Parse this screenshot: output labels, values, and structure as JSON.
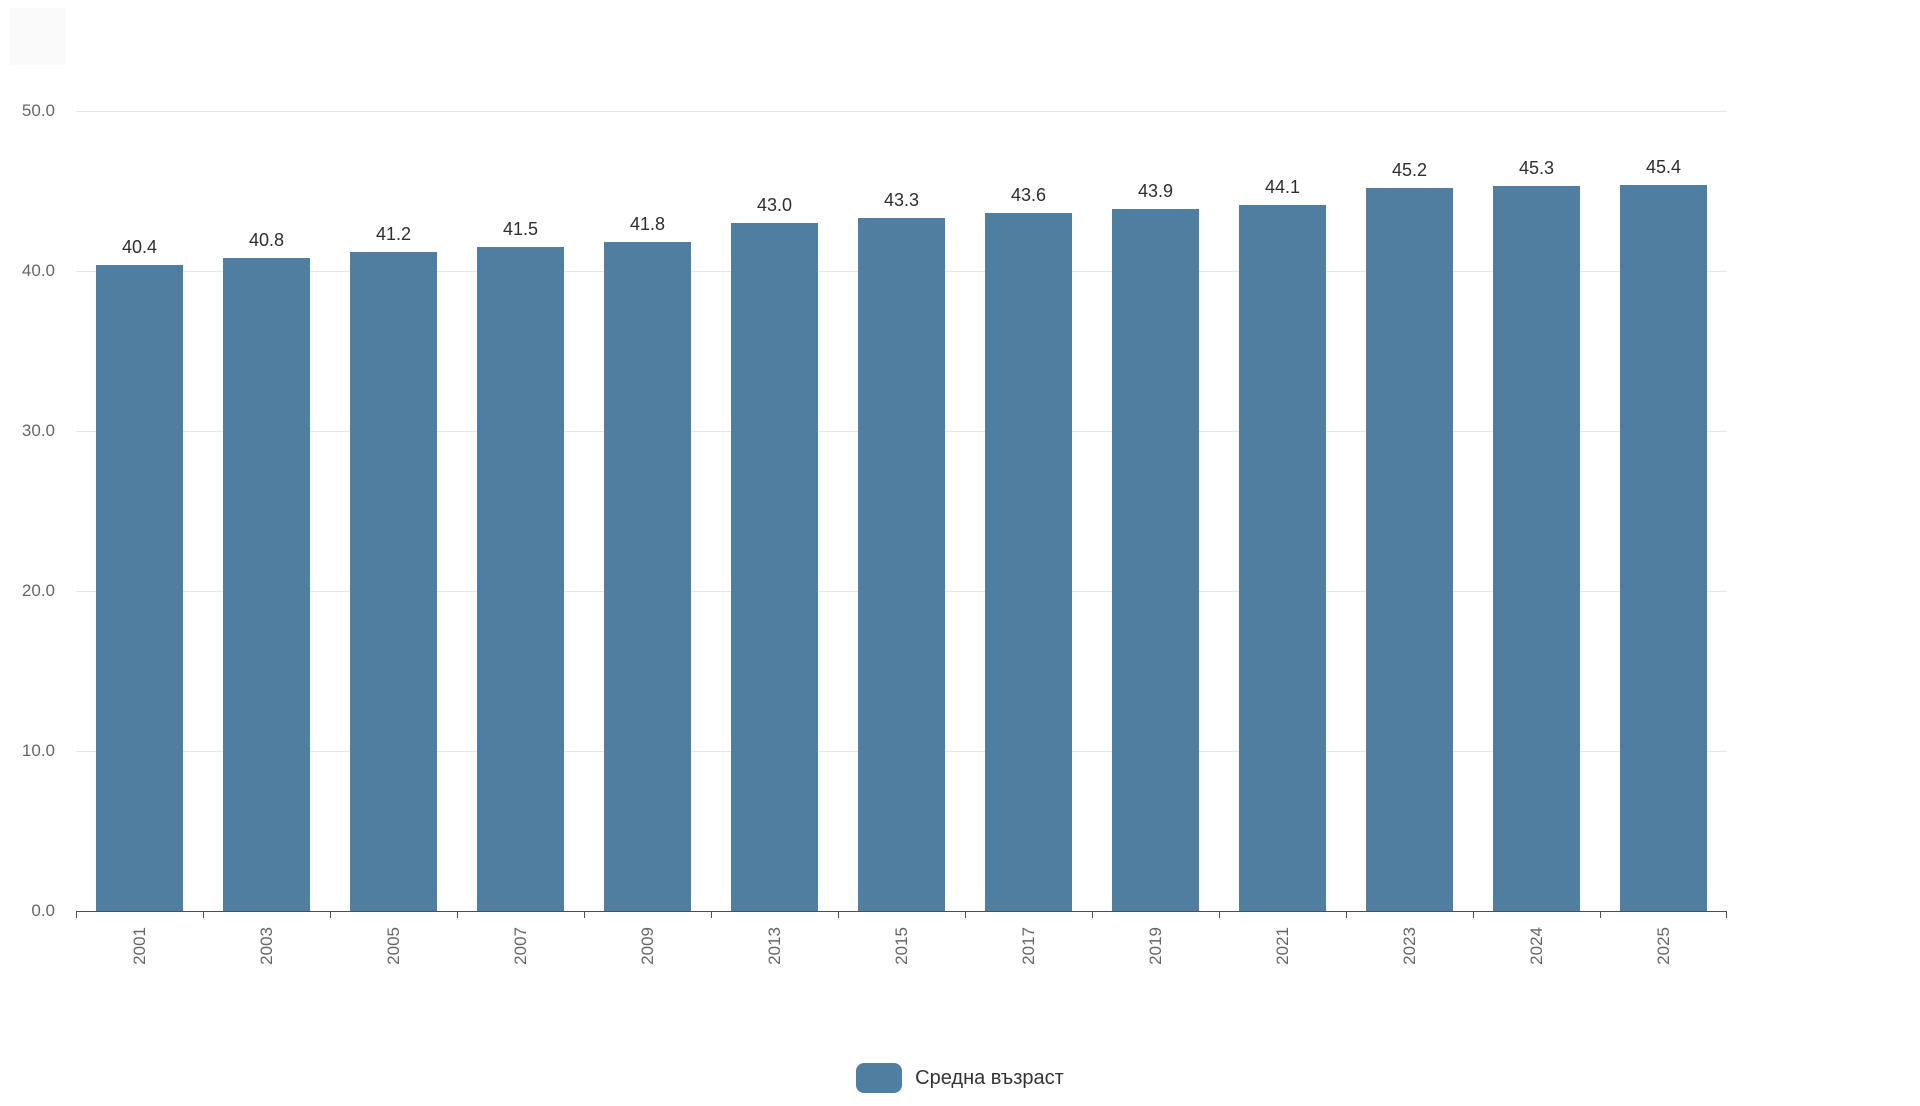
{
  "chart_data": {
    "type": "bar",
    "title": "",
    "xlabel": "",
    "ylabel": "",
    "categories": [
      "2001",
      "2003",
      "2005",
      "2007",
      "2009",
      "2013",
      "2015",
      "2017",
      "2019",
      "2021",
      "2023",
      "2024",
      "2025"
    ],
    "series": [
      {
        "name": "Средна възраст",
        "values": [
          40.4,
          40.8,
          41.2,
          41.5,
          41.8,
          43.0,
          43.3,
          43.6,
          43.9,
          44.1,
          45.2,
          45.3,
          45.4
        ],
        "value_labels": [
          "40.4",
          "40.8",
          "41.2",
          "41.5",
          "41.8",
          "43.0",
          "43.3",
          "43.6",
          "43.9",
          "44.1",
          "45.2",
          "45.3",
          "45.4"
        ],
        "color": "#4f7ea1"
      }
    ],
    "ylim": [
      0,
      50
    ],
    "y_ticks": [
      {
        "value": 0,
        "label": "0.0"
      },
      {
        "value": 10,
        "label": "10.0"
      },
      {
        "value": 20,
        "label": "20.0"
      },
      {
        "value": 30,
        "label": "30.0"
      },
      {
        "value": 40,
        "label": "40.0"
      },
      {
        "value": 50,
        "label": "50.0"
      }
    ],
    "grid": true,
    "x_label_rotation": -90,
    "legend_position": "bottom-center"
  },
  "legend": {
    "label": "Средна възраст",
    "swatch_color": "#4f7ea1"
  },
  "colors": {
    "bar": "#4f7ea1",
    "grid": "#e4e7ee",
    "axis": "#4f4f4f",
    "tick_label": "#666666",
    "data_label": "#2e2e2e",
    "background": "#ffffff"
  }
}
